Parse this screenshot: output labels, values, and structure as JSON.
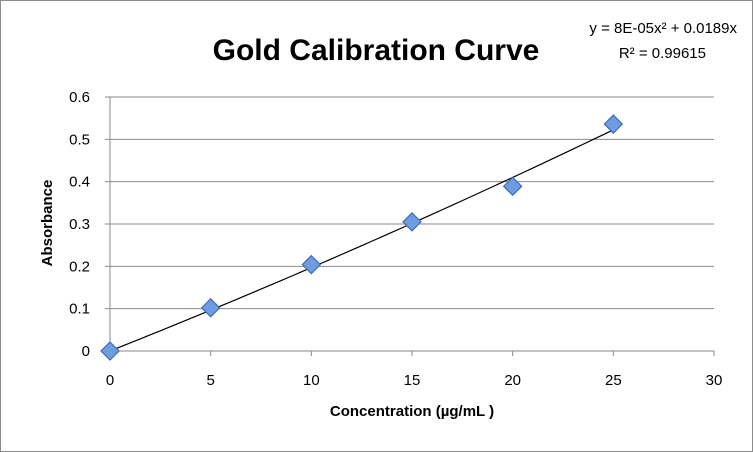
{
  "chart_data": {
    "type": "scatter",
    "title": "Gold Calibration Curve",
    "xlabel": "Concentration (µg/mL )",
    "ylabel": "Absorbance",
    "xlim": [
      0,
      30
    ],
    "ylim": [
      0,
      0.6
    ],
    "xticks": [
      "0",
      "5",
      "10",
      "15",
      "20",
      "25",
      "30"
    ],
    "yticks": [
      "0",
      "0.1",
      "0.2",
      "0.3",
      "0.4",
      "0.5",
      "0.6"
    ],
    "grid": "horizontal",
    "series": [
      {
        "name": "Absorbance",
        "x": [
          0,
          5,
          10,
          15,
          20,
          25
        ],
        "y": [
          0,
          0.102,
          0.204,
          0.305,
          0.389,
          0.536
        ],
        "marker": "diamond",
        "color": "#6f9be0",
        "edge_color": "#3e6db5"
      }
    ],
    "trendline": {
      "type": "polynomial",
      "order": 2,
      "coefficients": {
        "a": 8e-05,
        "b": 0.0189,
        "c": 0
      },
      "x_range": [
        0,
        25
      ],
      "equation_text": "y = 8E-05x² + 0.0189x",
      "r2_text": "R² = 0.99615",
      "color": "#000000"
    }
  }
}
